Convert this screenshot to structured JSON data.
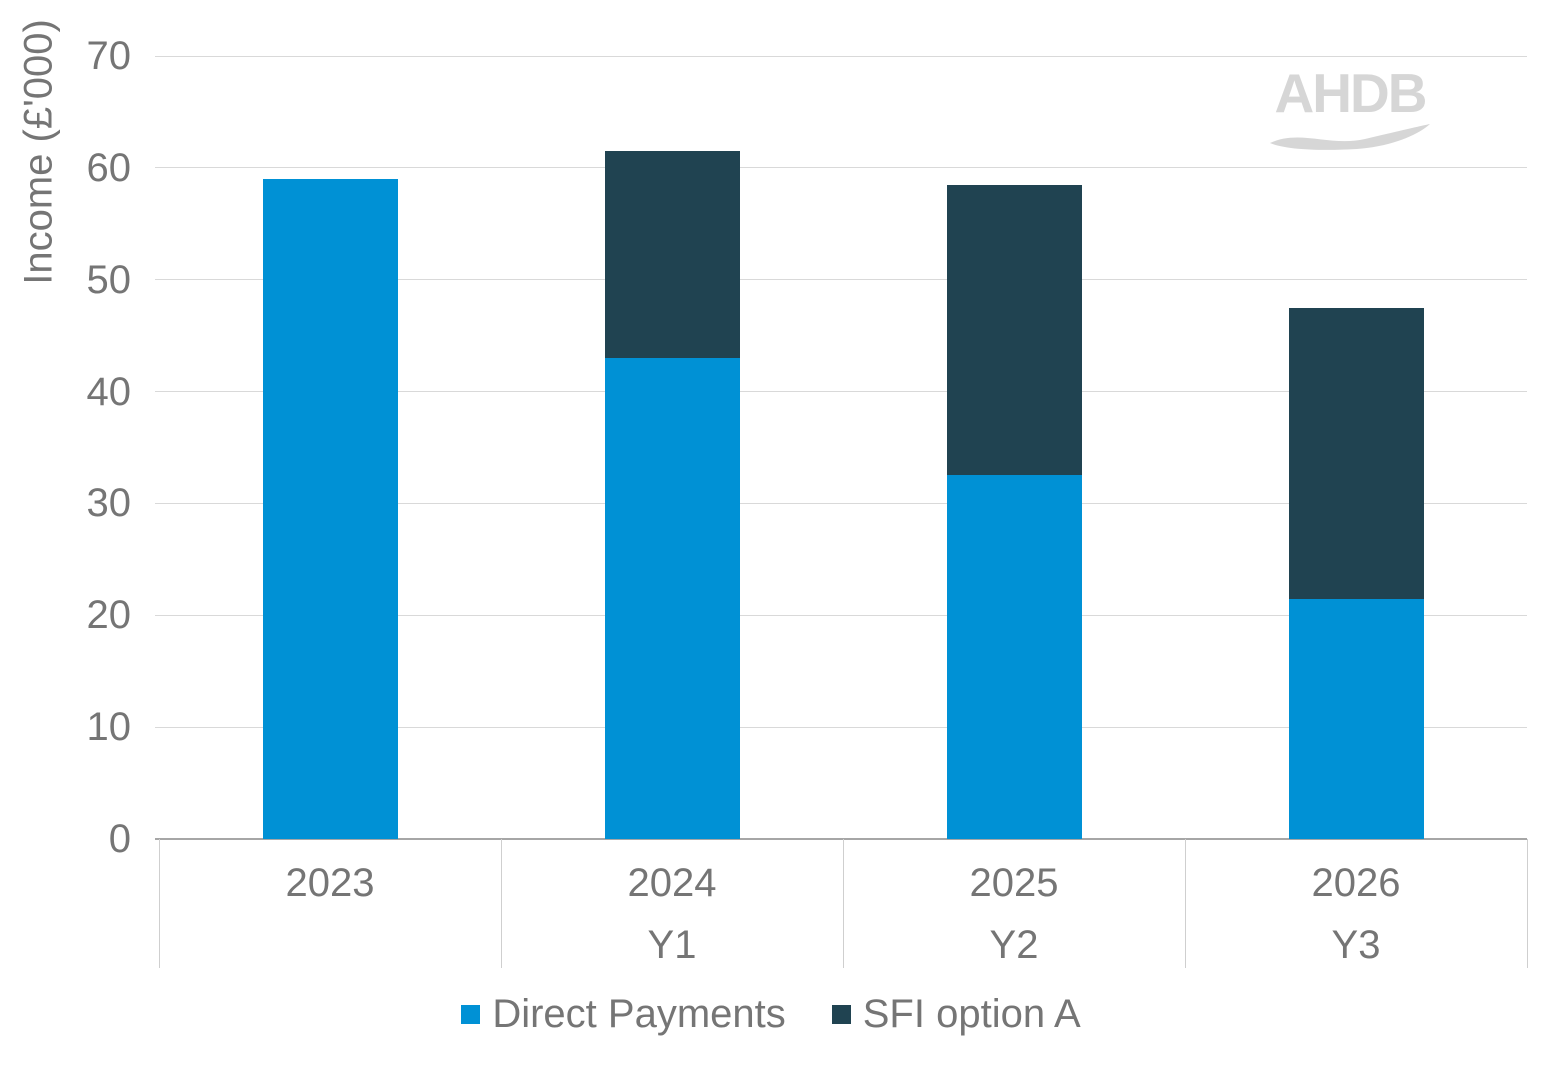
{
  "chart_data": {
    "type": "bar",
    "stacked": true,
    "title": "",
    "ylabel": "Income (£'000)",
    "xlabel": "",
    "ylim": [
      0,
      70
    ],
    "yticks": [
      0,
      10,
      20,
      30,
      40,
      50,
      60,
      70
    ],
    "grid": true,
    "legend_position": "bottom",
    "categories": [
      {
        "year": "2023",
        "sub": ""
      },
      {
        "year": "2024",
        "sub": "Y1"
      },
      {
        "year": "2025",
        "sub": "Y2"
      },
      {
        "year": "2026",
        "sub": "Y3"
      }
    ],
    "series": [
      {
        "name": "Direct Payments",
        "color": "#0091d5",
        "values": [
          59,
          43,
          32.5,
          21.5
        ]
      },
      {
        "name": "SFI option A",
        "color": "#204351",
        "values": [
          0,
          18.5,
          26,
          26
        ]
      }
    ]
  },
  "watermark": {
    "text": "AHDB"
  },
  "theme": {
    "grid_color": "#d9d9d9",
    "axis_color": "#a6a6a6",
    "divider_color": "#cfcfcf",
    "label_color": "#757575",
    "logo_color": "#d6d6d6"
  }
}
